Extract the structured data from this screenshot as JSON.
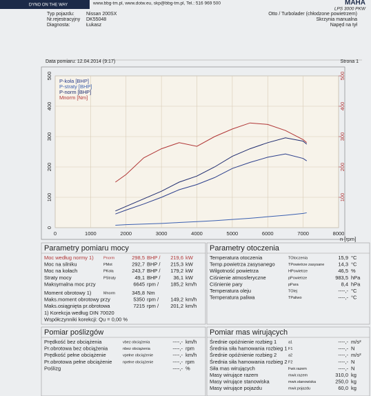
{
  "header": {
    "contact": "www.bbg-tm.pl, www.dotw.eu, skp@bbg-tm.pl, Tel.: 516 969 500",
    "logo": "DYNO ON THE WAY",
    "brand": "MAHA",
    "model": "LPS 3000 PKW",
    "fields": [
      [
        "Typ pojazdu:",
        "Nissan 200SX"
      ],
      [
        "Nr.rejestracyjny",
        "DK55048"
      ],
      [
        "Diagnosta:",
        "Łukasz"
      ]
    ],
    "engine": [
      "Otto / Turbolader (chłodzone powietrzem)",
      "Skrzynia manualna",
      "Napęd na tył"
    ],
    "date": "Data pomiaru: 12.04.2014 (9:17)",
    "page": "Strona 1"
  },
  "chart_data": {
    "type": "line",
    "xlabel": "n [rpm]",
    "x": [
      1700,
      2000,
      2500,
      3000,
      3500,
      4000,
      4500,
      5000,
      5500,
      6000,
      6500,
      7000,
      7100
    ],
    "series": [
      {
        "name": "P-koła [BHP]",
        "color": "#2c3f8c",
        "values": [
          45,
          58,
          78,
          100,
          125,
          142,
          165,
          195,
          215,
          232,
          243,
          228,
          220
        ]
      },
      {
        "name": "P-straty [BHP]",
        "color": "#3a5fb0",
        "values": [
          8,
          10,
          12,
          14,
          17,
          20,
          23,
          27,
          31,
          36,
          41,
          47,
          49
        ]
      },
      {
        "name": "P-norm [BHP]",
        "color": "#1d2a6e",
        "values": [
          55,
          70,
          95,
          120,
          150,
          170,
          200,
          235,
          260,
          280,
          296,
          285,
          275
        ]
      },
      {
        "name": "Mnorm [Nm]",
        "color": "#b03535",
        "axis": "y2",
        "values": [
          150,
          175,
          230,
          260,
          280,
          268,
          300,
          325,
          345,
          340,
          320,
          290,
          280
        ]
      }
    ],
    "xlim": [
      0,
      8000
    ],
    "xticks": [
      0,
      1000,
      2000,
      3000,
      4000,
      5000,
      6000,
      7000,
      8000
    ],
    "ylim": [
      0,
      500
    ],
    "yticks": [
      0,
      100,
      200,
      300,
      400,
      500
    ],
    "y2lim": [
      0,
      500
    ],
    "y2ticks": [
      100,
      200,
      300,
      400,
      500
    ],
    "grid": true
  },
  "sections": [
    {
      "title": "Parametry pomiaru mocy",
      "rows": [
        {
          "label": "Moc według normy 1)",
          "symbol": "Pnorm",
          "value": "298,5",
          "unit": "BHP /",
          "value2": "219,6",
          "unit2": "kW"
        },
        {
          "label": "Moc na silniku",
          "symbol": "PMot",
          "value": "292,7",
          "unit": "BHP /",
          "value2": "215,3",
          "unit2": "kW"
        },
        {
          "label": "Moc na kołach",
          "symbol": "PKoła",
          "value": "243,7",
          "unit": "BHP /",
          "value2": "179,2",
          "unit2": "kW"
        },
        {
          "label": "Straty mocy",
          "symbol": "PStraty",
          "value": "49,1",
          "unit": "BHP /",
          "value2": "36,1",
          "unit2": "kW"
        },
        {
          "label": "Maksymalna moc przy",
          "value": "6645",
          "unit": "rpm /",
          "value2": "185,2",
          "unit2": "km/h"
        },
        {
          "label": "Moment obrotowy 1)",
          "symbol": "Mnorm",
          "value": "345,8",
          "unit": "Nm"
        },
        {
          "label": "Maks.moment obrotowy przy",
          "value": "5350",
          "unit": "rpm /",
          "value2": "149,2",
          "unit2": "km/h"
        },
        {
          "label": "Maks.osiągnięta pr.obrotowa",
          "value": "7215",
          "unit": "rpm /",
          "value2": "201,2",
          "unit2": "km/h"
        },
        {
          "label": "1) Korekcja według DIN 70020"
        },
        {
          "label": "Współczynniki korekcji: Qu = 0,00 %"
        }
      ]
    },
    {
      "title": "Parametry otoczenia",
      "rows": [
        {
          "label": "Temperatura otoczenia",
          "symbol": "TOtoczenia",
          "value": "15,9",
          "unit": "°C"
        },
        {
          "label": "Temp.powietrza zasysanego",
          "symbol": "TPowietrze zasysane",
          "value": "14,3",
          "unit": "°C"
        },
        {
          "label": "Wilgotność powietrza",
          "symbol": "HPowietrze",
          "value": "46,5",
          "unit": "%"
        },
        {
          "label": "Ciśnienie atmosferyczne",
          "symbol": "pPowietrze",
          "value": "983,5",
          "unit": "hPa"
        },
        {
          "label": "Ciśnienie pary",
          "symbol": "pPara",
          "value": "8,4",
          "unit": "hPa"
        },
        {
          "label": "Temperatura oleju",
          "symbol": "TOlej",
          "value": "----,-",
          "unit": "°C"
        },
        {
          "label": "Temperatura paliwa",
          "symbol": "TPaliwo",
          "value": "----,-",
          "unit": "°C"
        }
      ]
    },
    {
      "title": "Pomiar poślizgów",
      "rows": [
        {
          "label": "Prędkość bez obciążenia",
          "symbol": "vbez obciążenia",
          "value": "----,-",
          "unit": "km/h"
        },
        {
          "label": "Pr.obrotowa bez obciążenia",
          "symbol": "nbez obciążenia",
          "value": "----,-",
          "unit": "rpm"
        },
        {
          "label": "Prędkość pełne obciążenie",
          "symbol": "vpełne obciążenie",
          "value": "----,-",
          "unit": "km/h"
        },
        {
          "label": "Pr.obrotowa pełne obciążenie",
          "symbol": "npełne obciążenie",
          "value": "----,-",
          "unit": "rpm"
        },
        {
          "label": "Poślizg",
          "value": "----,-",
          "unit": "%"
        }
      ]
    },
    {
      "title": "Pomiar mas wirujących",
      "rows": [
        {
          "label": "Średnie opóźnienie rozbieg 1",
          "symbol": "a1",
          "value": "----,-",
          "unit": "m/s²"
        },
        {
          "label": "Średnia siła hamowania rozbieg 1",
          "symbol": "F1",
          "value": "----,-",
          "unit": "N"
        },
        {
          "label": "Średnie opóźnienie rozbieg 2",
          "symbol": "a2",
          "value": "----,-",
          "unit": "m/s²"
        },
        {
          "label": "Średnia siła hamowania rozbieg 2",
          "symbol": "F2",
          "value": "----,-",
          "unit": "N"
        },
        {
          "label": "Siła mas wirujących",
          "symbol": "Fwir.razem",
          "value": "----,-",
          "unit": "N"
        },
        {
          "label": "Masy wirujące razem",
          "symbol": "mwir.razem",
          "value": "310,0",
          "unit": "kg"
        },
        {
          "label": "Masy wirujące stanowiska",
          "symbol": "mwir.stanowiska",
          "value": "250,0",
          "unit": "kg"
        },
        {
          "label": "Masy wirujące pojazdu",
          "symbol": "mwir.pojazdu",
          "value": "60,0",
          "unit": "kg"
        }
      ]
    }
  ]
}
